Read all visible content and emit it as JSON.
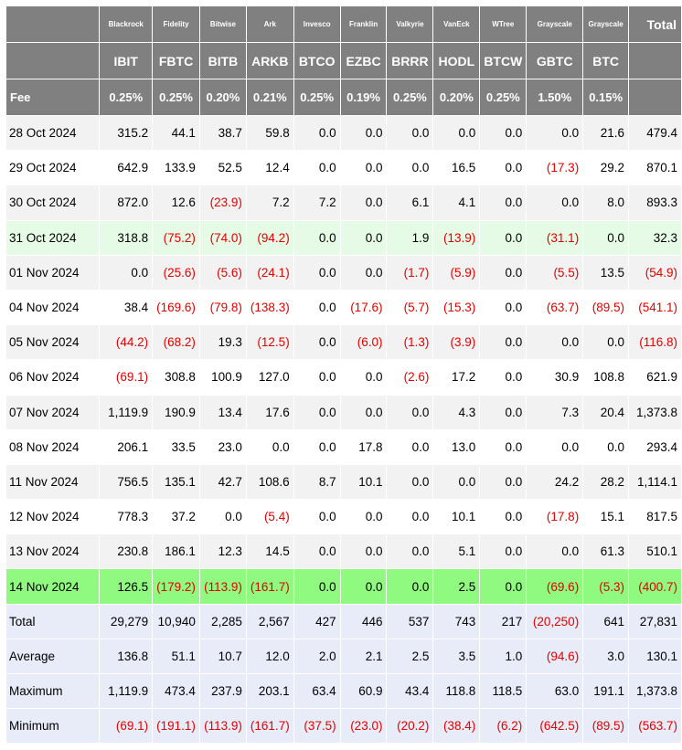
{
  "providers": [
    "Blackrock",
    "Fidelity",
    "Bitwise",
    "Ark",
    "Invesco",
    "Franklin",
    "Valkyrie",
    "VanEck",
    "WTree",
    "Grayscale",
    "Grayscale"
  ],
  "total_header": "Total",
  "tickers": [
    "IBIT",
    "FBTC",
    "BITB",
    "ARKB",
    "BTCO",
    "EZBC",
    "BRRR",
    "HODL",
    "BTCW",
    "GBTC",
    "BTC"
  ],
  "fee_label": "Fee",
  "fees": [
    "0.25%",
    "0.25%",
    "0.20%",
    "0.21%",
    "0.25%",
    "0.19%",
    "0.25%",
    "0.20%",
    "0.25%",
    "1.50%",
    "0.15%"
  ],
  "colors": {
    "header_bg": "#808080",
    "negative": "#e00000",
    "highlight_light": "#e6fbe6",
    "highlight_strong": "#90fa80",
    "summary_bg": "#e8ecf8"
  },
  "rows": [
    {
      "date": "28 Oct 2024",
      "values": [
        "315.2",
        "44.1",
        "38.7",
        "59.8",
        "0.0",
        "0.0",
        "0.0",
        "0.0",
        "0.0",
        "0.0",
        "21.6"
      ],
      "total": "479.4"
    },
    {
      "date": "29 Oct 2024",
      "values": [
        "642.9",
        "133.9",
        "52.5",
        "12.4",
        "0.0",
        "0.0",
        "0.0",
        "16.5",
        "0.0",
        "(17.3)",
        "29.2"
      ],
      "total": "870.1"
    },
    {
      "date": "30 Oct 2024",
      "values": [
        "872.0",
        "12.6",
        "(23.9)",
        "7.2",
        "7.2",
        "0.0",
        "6.1",
        "4.1",
        "0.0",
        "0.0",
        "8.0"
      ],
      "total": "893.3"
    },
    {
      "date": "31 Oct 2024",
      "values": [
        "318.8",
        "(75.2)",
        "(74.0)",
        "(94.2)",
        "0.0",
        "0.0",
        "1.9",
        "(13.9)",
        "0.0",
        "(31.1)",
        "0.0"
      ],
      "total": "32.3",
      "highlight": "light"
    },
    {
      "date": "01 Nov 2024",
      "values": [
        "0.0",
        "(25.6)",
        "(5.6)",
        "(24.1)",
        "0.0",
        "0.0",
        "(1.7)",
        "(5.9)",
        "0.0",
        "(5.5)",
        "13.5"
      ],
      "total": "(54.9)"
    },
    {
      "date": "04 Nov 2024",
      "values": [
        "38.4",
        "(169.6)",
        "(79.8)",
        "(138.3)",
        "0.0",
        "(17.6)",
        "(5.7)",
        "(15.3)",
        "0.0",
        "(63.7)",
        "(89.5)"
      ],
      "total": "(541.1)"
    },
    {
      "date": "05 Nov 2024",
      "values": [
        "(44.2)",
        "(68.2)",
        "19.3",
        "(12.5)",
        "0.0",
        "(6.0)",
        "(1.3)",
        "(3.9)",
        "0.0",
        "0.0",
        "0.0"
      ],
      "total": "(116.8)"
    },
    {
      "date": "06 Nov 2024",
      "values": [
        "(69.1)",
        "308.8",
        "100.9",
        "127.0",
        "0.0",
        "0.0",
        "(2.6)",
        "17.2",
        "0.0",
        "30.9",
        "108.8"
      ],
      "total": "621.9"
    },
    {
      "date": "07 Nov 2024",
      "values": [
        "1,119.9",
        "190.9",
        "13.4",
        "17.6",
        "0.0",
        "0.0",
        "0.0",
        "4.3",
        "0.0",
        "7.3",
        "20.4"
      ],
      "total": "1,373.8"
    },
    {
      "date": "08 Nov 2024",
      "values": [
        "206.1",
        "33.5",
        "23.0",
        "0.0",
        "0.0",
        "17.8",
        "0.0",
        "13.0",
        "0.0",
        "0.0",
        "0.0"
      ],
      "total": "293.4"
    },
    {
      "date": "11 Nov 2024",
      "values": [
        "756.5",
        "135.1",
        "42.7",
        "108.6",
        "8.7",
        "10.1",
        "0.0",
        "0.0",
        "0.0",
        "24.2",
        "28.2"
      ],
      "total": "1,114.1"
    },
    {
      "date": "12 Nov 2024",
      "values": [
        "778.3",
        "37.2",
        "0.0",
        "(5.4)",
        "0.0",
        "0.0",
        "0.0",
        "10.1",
        "0.0",
        "(17.8)",
        "15.1"
      ],
      "total": "817.5"
    },
    {
      "date": "13 Nov 2024",
      "values": [
        "230.8",
        "186.1",
        "12.3",
        "14.5",
        "0.0",
        "0.0",
        "0.0",
        "5.1",
        "0.0",
        "0.0",
        "61.3"
      ],
      "total": "510.1"
    },
    {
      "date": "14 Nov 2024",
      "values": [
        "126.5",
        "(179.2)",
        "(113.9)",
        "(161.7)",
        "0.0",
        "0.0",
        "0.0",
        "2.5",
        "0.0",
        "(69.6)",
        "(5.3)"
      ],
      "total": "(400.7)",
      "highlight": "strong"
    }
  ],
  "summary": [
    {
      "label": "Total",
      "values": [
        "29,279",
        "10,940",
        "2,285",
        "2,567",
        "427",
        "446",
        "537",
        "743",
        "217",
        "(20,250)",
        "641"
      ],
      "total": "27,831"
    },
    {
      "label": "Average",
      "values": [
        "136.8",
        "51.1",
        "10.7",
        "12.0",
        "2.0",
        "2.1",
        "2.5",
        "3.5",
        "1.0",
        "(94.6)",
        "3.0"
      ],
      "total": "130.1"
    },
    {
      "label": "Maximum",
      "values": [
        "1,119.9",
        "473.4",
        "237.9",
        "203.1",
        "63.4",
        "60.9",
        "43.4",
        "118.8",
        "118.5",
        "63.0",
        "191.1"
      ],
      "total": "1,373.8"
    },
    {
      "label": "Minimum",
      "values": [
        "(69.1)",
        "(191.1)",
        "(113.9)",
        "(161.7)",
        "(37.5)",
        "(23.0)",
        "(20.2)",
        "(38.4)",
        "(6.2)",
        "(642.5)",
        "(89.5)"
      ],
      "total": "(563.7)"
    }
  ]
}
